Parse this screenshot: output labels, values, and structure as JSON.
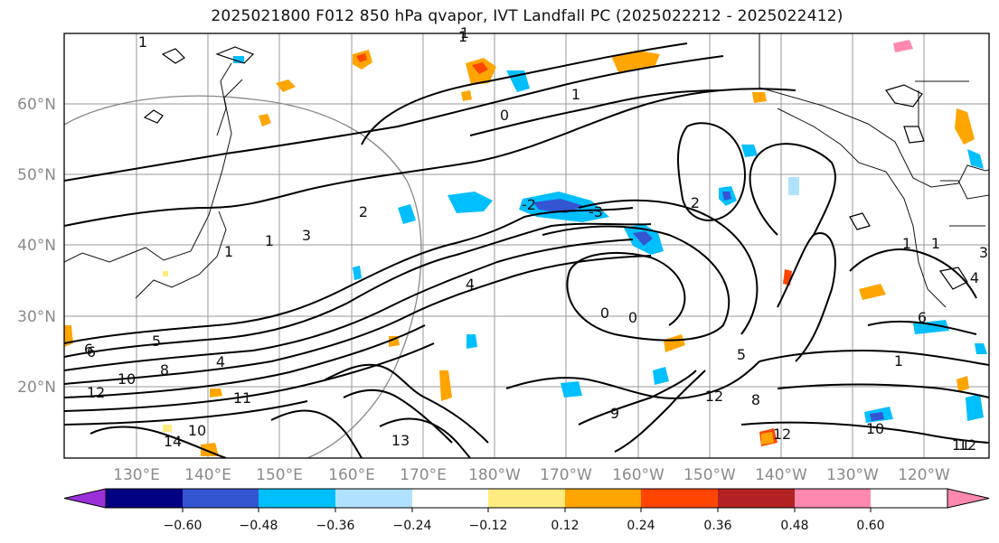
{
  "title": "2025021800 F012 850 hPa qvapor, IVT Landfall PC (2025022212 - 2025022412)",
  "latitude_labels": [
    "60°N",
    "50°N",
    "40°N",
    "30°N",
    "20°N"
  ],
  "longitude_labels": [
    "130°E",
    "140°E",
    "150°E",
    "160°E",
    "170°E",
    "180°W",
    "170°W",
    "160°W",
    "150°W",
    "140°W",
    "130°W",
    "120°W"
  ],
  "colorbar": {
    "tick_labels": [
      "−0.60",
      "−0.48",
      "−0.36",
      "−0.24",
      "−0.12",
      "0.12",
      "0.24",
      "0.36",
      "0.48",
      "0.60"
    ],
    "colors": [
      "#9b30d9",
      "#000080",
      "#3455d1",
      "#00bfff",
      "#b0e2ff",
      "#ffffff",
      "#ffeb7f",
      "#ffa500",
      "#ff4500",
      "#b22222",
      "#ff88b0"
    ]
  },
  "contour_labels": [
    "1",
    "1",
    "1",
    "0",
    "1",
    "1",
    "3",
    "1",
    "2",
    "-2",
    "-3",
    "2",
    "4",
    "5",
    "6",
    "8",
    "10",
    "12",
    "14",
    "10",
    "11",
    "4",
    "5",
    "8",
    "10",
    "12",
    "1",
    "4",
    "0",
    "6",
    "9",
    "12",
    "11",
    "12",
    "13",
    "1",
    "6",
    "1",
    "0",
    "3"
  ]
}
